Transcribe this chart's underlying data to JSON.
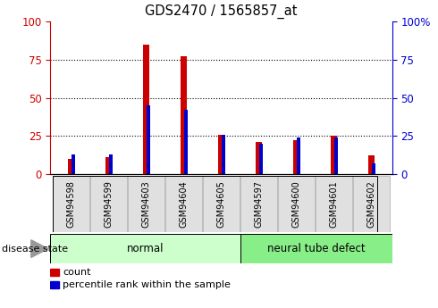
{
  "title": "GDS2470 / 1565857_at",
  "samples": [
    "GSM94598",
    "GSM94599",
    "GSM94603",
    "GSM94604",
    "GSM94605",
    "GSM94597",
    "GSM94600",
    "GSM94601",
    "GSM94602"
  ],
  "count_values": [
    10,
    11,
    85,
    77,
    26,
    21,
    22,
    25,
    12
  ],
  "percentile_values": [
    13,
    13,
    45,
    42,
    26,
    20,
    24,
    24,
    7
  ],
  "disease_states": [
    "normal",
    "normal",
    "normal",
    "normal",
    "normal",
    "neural tube defect",
    "neural tube defect",
    "neural tube defect",
    "neural tube defect"
  ],
  "normal_color_light": "#ccffcc",
  "neural_color_light": "#88ee88",
  "count_color": "#cc0000",
  "percentile_color": "#0000cc",
  "ymin": 0,
  "ymax": 100,
  "yticks": [
    0,
    25,
    50,
    75,
    100
  ],
  "legend_count": "count",
  "legend_percentile": "percentile rank within the sample",
  "disease_label": "disease state",
  "tick_label_color_left": "#cc0000",
  "tick_label_color_right": "#0000cc"
}
